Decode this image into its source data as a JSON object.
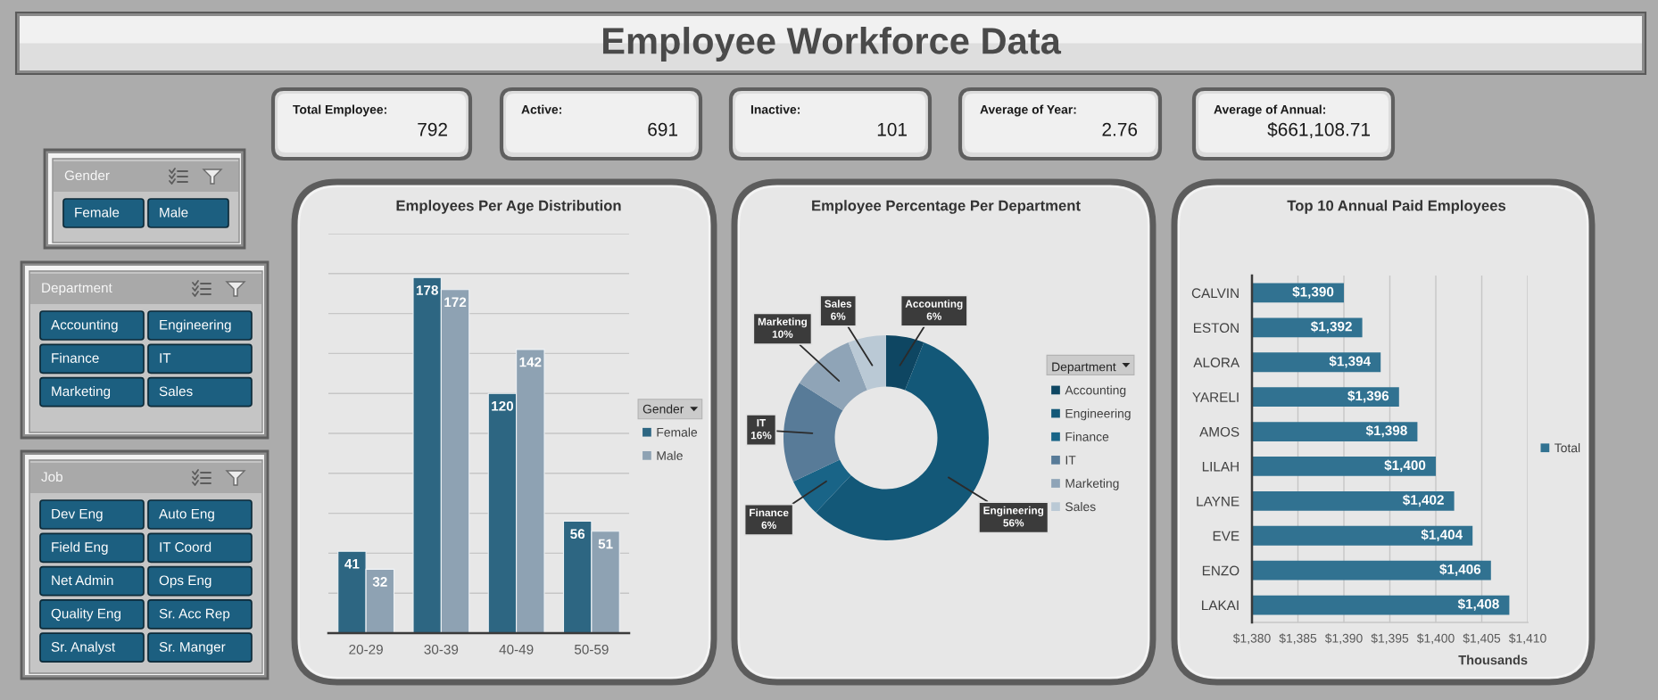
{
  "chart_data": [
    {
      "type": "other",
      "title": "Employee Workforce Data"
    },
    {
      "type": "other",
      "title": "Total Employee:",
      "annotations": [
        "792"
      ]
    },
    {
      "type": "other",
      "title": "Active:",
      "annotations": [
        "691"
      ]
    },
    {
      "type": "other",
      "title": "Inactive:",
      "annotations": [
        "101"
      ]
    },
    {
      "type": "other",
      "title": "Average of Year:",
      "annotations": [
        "2.76"
      ]
    },
    {
      "type": "other",
      "title": "Average of Annual:",
      "annotations": [
        "$661,108.71"
      ]
    },
    {
      "type": "other",
      "title": "Gender",
      "annotations": [
        "Female",
        "Male"
      ]
    },
    {
      "type": "other",
      "title": "Department",
      "annotations": [
        "Accounting",
        "Engineering",
        "Finance",
        "IT",
        "Marketing",
        "Sales"
      ]
    },
    {
      "type": "other",
      "title": "Job",
      "annotations": [
        "Dev Eng",
        "Auto Eng",
        "Field Eng",
        "IT Coord",
        "Net Admin",
        "Ops Eng",
        "Quality Eng",
        "Sr. Acc Rep",
        "Sr. Analyst",
        "Sr. Manger"
      ]
    },
    {
      "type": "bar",
      "title": "Employees Per Age Distribution",
      "categories": [
        "20-29",
        "30-39",
        "40-49",
        "50-59"
      ],
      "series": [
        {
          "name": "Female",
          "color": "#2d6682",
          "values": [
            41,
            178,
            120,
            56
          ]
        },
        {
          "name": "Male",
          "color": "#8ea2b3",
          "values": [
            32,
            172,
            142,
            51
          ]
        }
      ],
      "ylim": [
        0,
        200
      ],
      "yticks": [
        {
          "value": 0,
          "label": null
        },
        {
          "value": 20,
          "label": null
        },
        {
          "value": 40,
          "label": null
        },
        {
          "value": 60,
          "label": null
        },
        {
          "value": 80,
          "label": null
        },
        {
          "value": 100,
          "label": null
        },
        {
          "value": 120,
          "label": null
        },
        {
          "value": 140,
          "label": null
        },
        {
          "value": 160,
          "label": null
        },
        {
          "value": 180,
          "label": null
        },
        {
          "value": 200,
          "label": null
        }
      ],
      "grid": "y",
      "tick_labels": "x",
      "data_labels": true,
      "legend": "right",
      "legend_title": "Gender"
    },
    {
      "type": "donut",
      "title": "Employee Percentage Per Department",
      "categories": [
        "Accounting",
        "Engineering",
        "Finance",
        "IT",
        "Marketing",
        "Sales"
      ],
      "values": [
        6,
        56,
        6,
        16,
        10,
        6
      ],
      "colors": [
        "#0e4662",
        "#135878",
        "#196487",
        "#587b98",
        "#8fa4b7",
        "#bac9d5"
      ],
      "value_labels": [
        "6%",
        "56%",
        "6%",
        "16%",
        "10%",
        "6%"
      ],
      "legend": "right",
      "legend_title": "Department"
    },
    {
      "type": "bar",
      "orientation": "horizontal",
      "title": "Top 10 Annual Paid Employees",
      "categories": [
        "CALVIN",
        "ESTON",
        "ALORA",
        "YARELI",
        "AMOS",
        "LILAH",
        "LAYNE",
        "EVE",
        "ENZO",
        "LAKAI"
      ],
      "series": [
        {
          "name": "Total",
          "color": "#317291",
          "values": [
            1390,
            1392,
            1394,
            1396,
            1398,
            1400,
            1402,
            1404,
            1406,
            1408
          ],
          "value_labels": [
            "$1,390",
            "$1,392",
            "$1,394",
            "$1,396",
            "$1,398",
            "$1,400",
            "$1,402",
            "$1,404",
            "$1,406",
            "$1,408"
          ]
        }
      ],
      "xlim": [
        1380,
        1410
      ],
      "xticks": [
        {
          "value": 1380,
          "label": "$1,380"
        },
        {
          "value": 1385,
          "label": "$1,385"
        },
        {
          "value": 1390,
          "label": "$1,390"
        },
        {
          "value": 1395,
          "label": "$1,395"
        },
        {
          "value": 1400,
          "label": "$1,400"
        },
        {
          "value": 1405,
          "label": "$1,405"
        },
        {
          "value": 1410,
          "label": "$1,410"
        }
      ],
      "xlabel": "Thousands",
      "grid": "x",
      "legend": "right"
    }
  ]
}
